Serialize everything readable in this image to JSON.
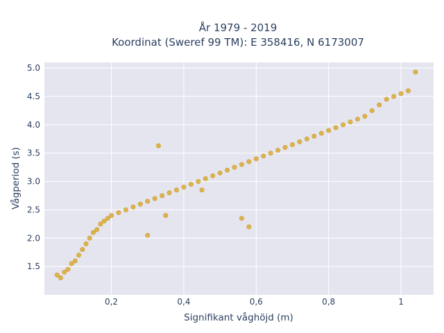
{
  "chart_data": {
    "type": "scatter",
    "title": "År 1979 - 2019",
    "subtitle": "Koordinat (Sweref 99 TM): E 358416, N 6173007",
    "xlabel": "Signifikant våghöjd (m)",
    "ylabel": "Vågperiod (s)",
    "xlim": [
      0.015,
      1.09
    ],
    "ylim": [
      1.0,
      5.1
    ],
    "x_ticks": [
      0.2,
      0.4,
      0.6,
      0.8,
      1.0
    ],
    "x_tick_labels": [
      "0,2",
      "0,4",
      "0,6",
      "0,8",
      "1"
    ],
    "y_ticks": [
      1.5,
      2.0,
      2.5,
      3.0,
      3.5,
      4.0,
      4.5,
      5.0
    ],
    "y_tick_labels": [
      "1.5",
      "2.0",
      "2.5",
      "3.0",
      "3.5",
      "4.0",
      "4.5",
      "5.0"
    ],
    "grid": true,
    "marker_color": "#d4a020",
    "plot_bg": "#e5e5f0",
    "series": [
      {
        "x": [
          0.05,
          0.06,
          0.07,
          0.08,
          0.09,
          0.1,
          0.11,
          0.12,
          0.13,
          0.14,
          0.15,
          0.16,
          0.17,
          0.18,
          0.19,
          0.2,
          0.22,
          0.24,
          0.26,
          0.28,
          0.3,
          0.32,
          0.34,
          0.36,
          0.38,
          0.4,
          0.42,
          0.44,
          0.46,
          0.48,
          0.5,
          0.52,
          0.54,
          0.56,
          0.58,
          0.6,
          0.62,
          0.64,
          0.66,
          0.68,
          0.7,
          0.72,
          0.74,
          0.76,
          0.78,
          0.8,
          0.82,
          0.84,
          0.86,
          0.88,
          0.9,
          0.92,
          0.94,
          0.96,
          0.98,
          1.0,
          1.02,
          1.04,
          0.33,
          0.56,
          0.58,
          0.3,
          0.45,
          0.35
        ],
        "y": [
          1.35,
          1.3,
          1.4,
          1.45,
          1.55,
          1.6,
          1.7,
          1.8,
          1.9,
          2.0,
          2.1,
          2.15,
          2.25,
          2.3,
          2.35,
          2.4,
          2.45,
          2.5,
          2.55,
          2.6,
          2.65,
          2.7,
          2.75,
          2.8,
          2.85,
          2.9,
          2.95,
          3.0,
          3.05,
          3.1,
          3.15,
          3.2,
          3.25,
          3.3,
          3.35,
          3.4,
          3.45,
          3.5,
          3.55,
          3.6,
          3.65,
          3.7,
          3.75,
          3.8,
          3.85,
          3.9,
          3.95,
          4.0,
          4.05,
          4.1,
          4.15,
          4.25,
          4.35,
          4.45,
          4.5,
          4.55,
          4.6,
          4.93,
          3.63,
          2.35,
          2.2,
          2.05,
          2.85,
          2.4
        ]
      }
    ]
  }
}
